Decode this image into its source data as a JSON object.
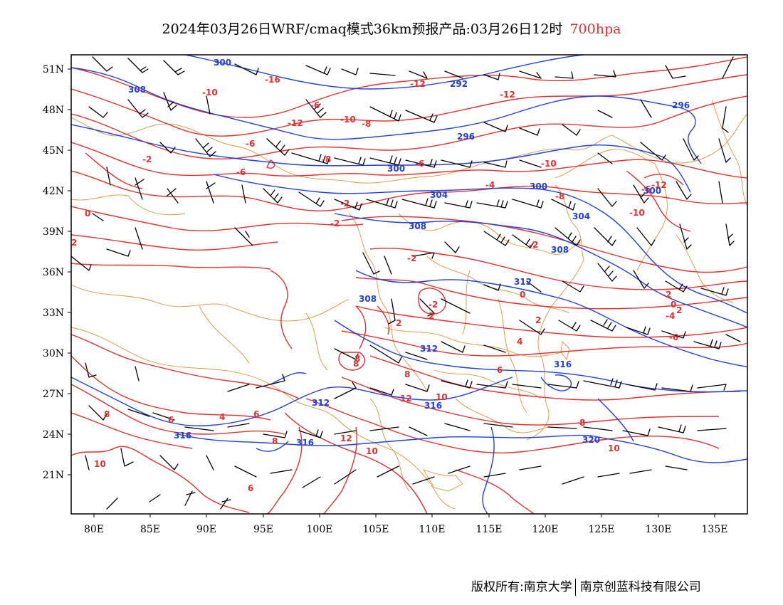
{
  "title": {
    "main": "2024年03月26日WRF/cmaq模式36km预报产品:03月26日12时",
    "level": "700hpa"
  },
  "footer": {
    "copyright": "版权所有:南京大学",
    "company": "南京创蓝科技有限公司"
  },
  "axes": {
    "lon_labels": [
      "80E",
      "85E",
      "90E",
      "95E",
      "100E",
      "105E",
      "110E",
      "115E",
      "120E",
      "125E",
      "130E",
      "135E"
    ],
    "lat_labels": [
      "51N",
      "48N",
      "45N",
      "42N",
      "39N",
      "36N",
      "33N",
      "30N",
      "27N",
      "24N",
      "21N"
    ]
  },
  "colors": {
    "temperature": "#e03030",
    "geopotential": "#2040d8",
    "boundaries": "#e09040",
    "wind": "#000000"
  },
  "temperature_labels": [
    "-16",
    "-12",
    "-10",
    "-12",
    "-10",
    "-8",
    "-12",
    "-10",
    "-6",
    "-8",
    "-6",
    "-4",
    "-2",
    "-6",
    "-2",
    "0",
    "2",
    "-2",
    "-8",
    "-6",
    "-12",
    "-10",
    "-2",
    "0",
    "-2",
    "-4",
    "-6",
    "0",
    "2",
    "2",
    "-2",
    "4",
    "2",
    "8",
    "8",
    "6",
    "12",
    "10",
    "8",
    "10",
    "8",
    "6",
    "4",
    "6",
    "8",
    "12",
    "10",
    "-6",
    "-2",
    "2",
    "6",
    "10",
    "8"
  ],
  "height_labels": [
    "300",
    "308",
    "292",
    "296",
    "296",
    "300",
    "304",
    "300",
    "304",
    "308",
    "300",
    "308",
    "312",
    "308",
    "312",
    "316",
    "316",
    "312",
    "316",
    "316",
    "320"
  ]
}
